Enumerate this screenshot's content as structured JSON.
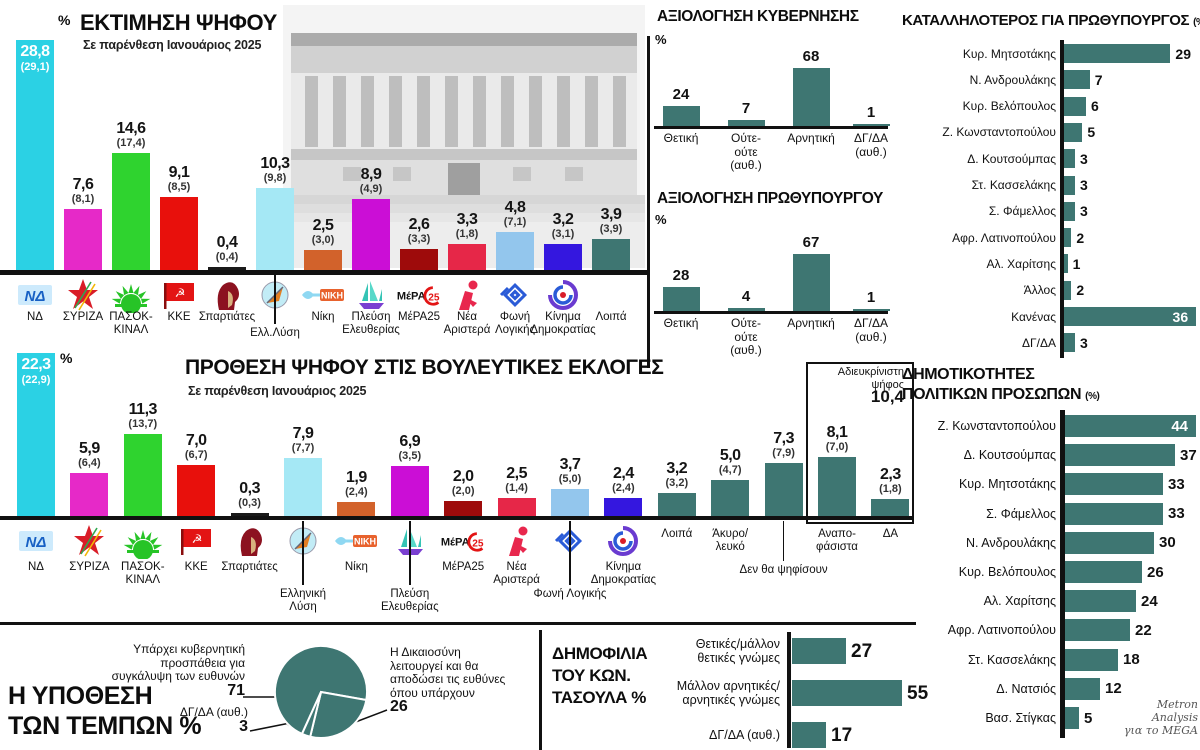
{
  "page": {
    "attribution": [
      "Metron",
      "Analysis",
      "για το MEGA"
    ]
  },
  "brand": {
    "teal": "#3E7672",
    "text": "#141414"
  },
  "chart_data": [
    {
      "id": "vote_estimation",
      "type": "bar",
      "title": "ΕΚΤΙΜΗΣΗ ΨΗΦΟΥ",
      "subtitle": "Σε παρένθεση Ιανουάριος 2025",
      "unit_label": "%",
      "categories": [
        "ΝΔ",
        "ΣΥΡΙΖΑ",
        "ΠΑΣΟΚ-ΚΙΝΑΛ",
        "ΚΚΕ",
        "Σπαρτιάτες",
        "Ελλ.Λύση",
        "Νίκη",
        "Πλεύση Ελευθερίας",
        "ΜέΡΑ25",
        "Νέα Αριστερά",
        "Φωνή Λογικής",
        "Κίνημα Δημοκρατίας",
        "Λοιπά"
      ],
      "label_lines": [
        [
          "ΝΔ"
        ],
        [
          "ΣΥΡΙΖΑ"
        ],
        [
          "ΠΑΣΟΚ-",
          "ΚΙΝΑΛ"
        ],
        [
          "ΚΚΕ"
        ],
        [
          "Σπαρτιάτες"
        ],
        [
          "Ελλ.Λύση"
        ],
        [
          "Νίκη"
        ],
        [
          "Πλεύση",
          "Ελευθερίας"
        ],
        [
          "ΜέΡΑ25"
        ],
        [
          "Νέα",
          "Αριστερά"
        ],
        [
          "Φωνή",
          "Λογικής"
        ],
        [
          "Κίνημα",
          "Δημοκρατίας"
        ],
        [
          "Λοιπά"
        ]
      ],
      "values": [
        28.8,
        7.6,
        14.6,
        9.1,
        0.4,
        10.3,
        2.5,
        8.9,
        2.6,
        3.3,
        4.8,
        3.2,
        3.9
      ],
      "previous": [
        29.1,
        8.1,
        17.4,
        8.5,
        0.4,
        9.8,
        3.0,
        4.9,
        3.3,
        1.8,
        7.1,
        3.1,
        3.9
      ],
      "colors": [
        "#2BD1E4",
        "#E629C8",
        "#2FD32F",
        "#E8100C",
        "#1A1A1A",
        "#A5E8F5",
        "#D2622B",
        "#CB0ED6",
        "#9E0B0B",
        "#E62748",
        "#93C6ED",
        "#3417DF",
        "#3E7672"
      ],
      "logos": [
        "nd",
        "syriza",
        "pasok",
        "kke",
        "spartiates",
        "elliniki-lysi",
        "niki",
        "plefsi",
        "mera25",
        "nea-aristera",
        "foni-logikis",
        "kinima-dimokratias",
        null
      ],
      "tiers": [
        0,
        0,
        0,
        0,
        0,
        1,
        0,
        0,
        0,
        0,
        0,
        0,
        0
      ]
    },
    {
      "id": "vote_intention",
      "type": "bar",
      "title": "ΠΡΟΘΕΣΗ ΨΗΦΟΥ ΣΤΙΣ ΒΟΥΛΕΥΤΙΚΕΣ ΕΚΛΟΓΕΣ",
      "subtitle": "Σε παρένθεση Ιανουάριος 2025",
      "unit_label": "%",
      "categories": [
        "ΝΔ",
        "ΣΥΡΙΖΑ",
        "ΠΑΣΟΚ-ΚΙΝΑΛ",
        "ΚΚΕ",
        "Σπαρτιάτες",
        "Ελληνική Λύση",
        "Νίκη",
        "Πλεύση Ελευθερίας",
        "ΜέΡΑ25",
        "Νέα Αριστερά",
        "Φωνή Λογικής",
        "Κίνημα Δημοκρατίας",
        "Λοιπά",
        "Άκυρο/λευκό",
        "Δεν θα ψηφίσουν",
        "Αναποφάσιστα",
        "ΔΑ"
      ],
      "label_lines": [
        [
          "ΝΔ"
        ],
        [
          "ΣΥΡΙΖΑ"
        ],
        [
          "ΠΑΣΟΚ-",
          "ΚΙΝΑΛ"
        ],
        [
          "ΚΚΕ"
        ],
        [
          "Σπαρτιάτες"
        ],
        [
          "Ελληνική",
          "Λύση"
        ],
        [
          "Νίκη"
        ],
        [
          "Πλεύση Ελευθερίας"
        ],
        [
          "ΜέΡΑ25"
        ],
        [
          "Νέα",
          "Αριστερά"
        ],
        [
          "Φωνή Λογικής"
        ],
        [
          "Κίνημα",
          "Δημοκρατίας"
        ],
        [
          "Λοιπά"
        ],
        [
          "Άκυρο/",
          "λευκό"
        ],
        [
          "Δεν θα ψηφίσουν"
        ],
        [
          "Αναπο-",
          "φάσιστα"
        ],
        [
          "ΔΑ"
        ]
      ],
      "values": [
        22.3,
        5.9,
        11.3,
        7.0,
        0.3,
        7.9,
        1.9,
        6.9,
        2.0,
        2.5,
        3.7,
        2.4,
        3.2,
        5.0,
        7.3,
        8.1,
        2.3
      ],
      "previous": [
        22.9,
        6.4,
        13.7,
        6.7,
        0.3,
        7.7,
        2.4,
        3.5,
        2.0,
        1.4,
        5.0,
        2.4,
        3.2,
        4.7,
        7.9,
        7.0,
        1.8
      ],
      "colors": [
        "#2BD1E4",
        "#E629C8",
        "#2FD32F",
        "#E8100C",
        "#1A1A1A",
        "#A5E8F5",
        "#D2622B",
        "#CB0ED6",
        "#9E0B0B",
        "#E62748",
        "#93C6ED",
        "#3417DF",
        "#3E7672",
        "#3E7672",
        "#3E7672",
        "#3E7672",
        "#3E7672"
      ],
      "logos": [
        "nd",
        "syriza",
        "pasok",
        "kke",
        "spartiates",
        "elliniki-lysi",
        "niki",
        "plefsi",
        "mera25",
        "nea-aristera",
        "foni-logikis",
        "kinima-dimokratias",
        null,
        null,
        null,
        null,
        null
      ],
      "tiers": [
        0,
        0,
        0,
        0,
        0,
        1,
        0,
        1,
        0,
        0,
        1,
        0,
        0,
        0,
        2,
        0,
        0
      ],
      "group_box": {
        "label_lines": [
          "Αδιευκρίνιστη",
          "ψήφος"
        ],
        "value": 10.4
      }
    },
    {
      "id": "government_evaluation",
      "type": "bar",
      "title": "ΑΞΙΟΛΟΓΗΣΗ ΚΥΒΕΡΝΗΣΗΣ",
      "unit_label": "%",
      "categories": [
        "Θετική",
        "Ούτε-ούτε (αυθ.)",
        "Αρνητική",
        "ΔΓ/ΔΑ (αυθ.)"
      ],
      "label_lines": [
        [
          "Θετική"
        ],
        [
          "Ούτε-",
          "ούτε",
          "(αυθ.)"
        ],
        [
          "Αρνητική"
        ],
        [
          "ΔΓ/ΔΑ",
          "(αυθ.)"
        ]
      ],
      "values": [
        24,
        7,
        68,
        1
      ]
    },
    {
      "id": "pm_evaluation",
      "type": "bar",
      "title": "ΑΞΙΟΛΟΓΗΣΗ ΠΡΩΘΥΠΟΥΡΓΟΥ",
      "unit_label": "%",
      "categories": [
        "Θετική",
        "Ούτε-ούτε (αυθ.)",
        "Αρνητική",
        "ΔΓ/ΔΑ (αυθ.)"
      ],
      "label_lines": [
        [
          "Θετική"
        ],
        [
          "Ούτε-",
          "ούτε",
          "(αυθ.)"
        ],
        [
          "Αρνητική"
        ],
        [
          "ΔΓ/ΔΑ",
          "(αυθ.)"
        ]
      ],
      "values": [
        28,
        4,
        67,
        1
      ]
    },
    {
      "id": "best_for_pm",
      "type": "bar",
      "orientation": "horizontal",
      "title": "ΚΑΤΑΛΛΗΛΟΤΕΡΟΣ ΓΙΑ ΠΡΩΘΥΠΟΥΡΓΟΣ",
      "unit_label": "(%)",
      "categories": [
        "Κυρ. Μητσοτάκης",
        "Ν. Ανδρουλάκης",
        "Κυρ. Βελόπουλος",
        "Ζ. Κωνσταντοπούλου",
        "Δ. Κουτσούμπας",
        "Στ. Κασσελάκης",
        "Σ. Φάμελλος",
        "Αφρ. Λατινοπούλου",
        "Αλ. Χαρίτσης",
        "Άλλος",
        "Κανένας",
        "ΔΓ/ΔΑ"
      ],
      "values": [
        29,
        7,
        6,
        5,
        3,
        3,
        3,
        2,
        1,
        2,
        36,
        3
      ]
    },
    {
      "id": "politician_popularity",
      "type": "bar",
      "orientation": "horizontal",
      "title": "ΔΗΜΟΤΙΚΟΤΗΤΕΣ ΠΟΛΙΤΙΚΩΝ ΠΡΟΣΩΠΩΝ",
      "title_lines": [
        "ΔΗΜΟΤΙΚΟΤΗΤΕΣ",
        "ΠΟΛΙΤΙΚΩΝ ΠΡΟΣΩΠΩΝ"
      ],
      "unit_label": "(%)",
      "categories": [
        "Ζ. Κωνσταντοπούλου",
        "Δ. Κουτσούμπας",
        "Κυρ. Μητσοτάκης",
        "Σ. Φάμελλος",
        "Ν. Ανδρουλάκης",
        "Κυρ. Βελόπουλος",
        "Αλ. Χαρίτσης",
        "Αφρ. Λατινοπούλου",
        "Στ. Κασσελάκης",
        "Δ. Νατσιός",
        "Βασ. Στίγκας"
      ],
      "values": [
        44,
        37,
        33,
        33,
        30,
        26,
        24,
        22,
        18,
        12,
        5
      ]
    },
    {
      "id": "tempi_case",
      "type": "pie",
      "title": "Η ΥΠΟΘΕΣΗ ΤΩΝ ΤΕΜΠΩΝ",
      "title_lines": [
        "Η ΥΠΟΘΕΣΗ",
        "ΤΩΝ ΤΕΜΠΩΝ %"
      ],
      "unit_label": "%",
      "slices": [
        {
          "label": "Υπάρχει κυβερνητική προσπάθεια για συγκάλυψη των ευθυνών",
          "label_lines": [
            "Υπάρχει κυβερνητική",
            "προσπάθεια για",
            "συγκάλυψη των ευθυνών"
          ],
          "value": 71
        },
        {
          "label": "Η Δικαιοσύνη λειτουργεί και θα αποδώσει τις ευθύνες όπου υπάρχουν",
          "label_lines": [
            "Η Δικαιοσύνη",
            "λειτουργεί και θα",
            "αποδώσει τις ευθύνες",
            "όπου υπάρχουν"
          ],
          "value": 26
        },
        {
          "label": "ΔΓ/ΔΑ (αυθ.)",
          "label_lines": [
            "ΔΓ/ΔΑ (αυθ.)"
          ],
          "value": 3
        }
      ]
    },
    {
      "id": "tasoulas_popularity",
      "type": "bar",
      "orientation": "horizontal",
      "title": "ΔΗΜΟΦΙΛΙΑ ΤΟΥ ΚΩΝ. ΤΑΣΟΥΛΑ",
      "title_lines": [
        "ΔΗΜΟΦΙΛΙΑ",
        "ΤΟΥ ΚΩΝ.",
        "ΤΑΣΟΥΛΑ %"
      ],
      "unit_label": "%",
      "categories": [
        "Θετικές/μάλλον θετικές γνώμες",
        "Μάλλον αρνητικές/αρνητικές γνώμες",
        "ΔΓ/ΔΑ (αυθ.)"
      ],
      "label_lines": [
        [
          "Θετικές/μάλλον",
          "θετικές γνώμες"
        ],
        [
          "Μάλλον αρνητικές/",
          "αρνητικές γνώμες"
        ],
        [
          "ΔΓ/ΔΑ (αυθ.)"
        ]
      ],
      "values": [
        27,
        55,
        17
      ]
    }
  ]
}
